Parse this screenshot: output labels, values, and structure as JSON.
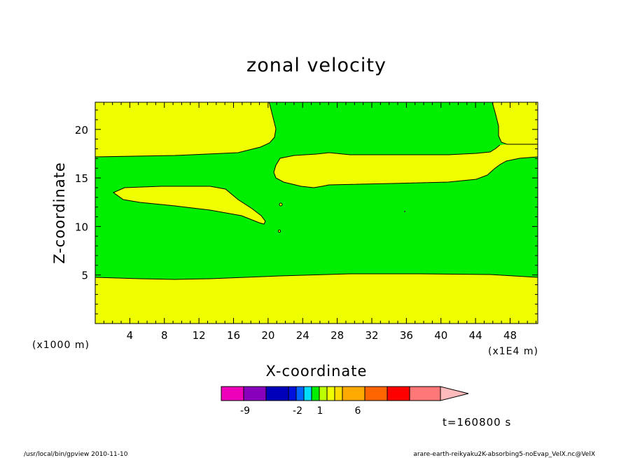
{
  "chart_data": {
    "type": "heatmap",
    "title": "zonal velocity",
    "xlabel": "X-coordinate",
    "ylabel": "Z-coordinate",
    "x_unit_left": "(x1000 m)",
    "x_unit_right": "(x1E4 m)",
    "x_ticks": [
      "4",
      "8",
      "12",
      "16",
      "20",
      "24",
      "28",
      "32",
      "36",
      "40",
      "44",
      "48"
    ],
    "y_ticks": [
      "5",
      "10",
      "15",
      "20"
    ],
    "xlim": [
      0,
      51.2
    ],
    "ylim": [
      0,
      22.8
    ],
    "regions": [
      {
        "name": "yellow",
        "color": "#f0ff00"
      },
      {
        "name": "green",
        "color": "#00ee00"
      }
    ],
    "colorbar": {
      "colors": [
        "#ee00bb",
        "#8800bb",
        "#0000bb",
        "#0011dd",
        "#0066ff",
        "#00ddff",
        "#00ee00",
        "#bbff00",
        "#f0ff00",
        "#ffdd00",
        "#ffaa00",
        "#ff6600",
        "#ff0000",
        "#ff7777",
        "#ffbbbb"
      ],
      "labels": [
        "-9",
        "-2",
        "1",
        "6"
      ]
    },
    "time_label": "t=160800 s"
  },
  "footer": {
    "left": "/usr/local/bin/gpview   2010-11-10",
    "right": "arare-earth-reikyaku2K-absorbing5-noEvap_VelX.nc@VelX"
  }
}
